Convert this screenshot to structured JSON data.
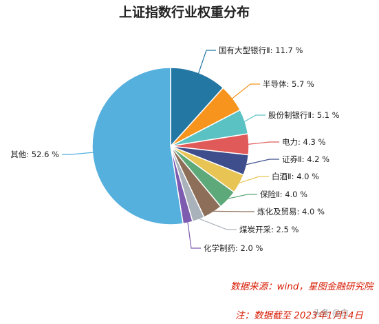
{
  "chart_data": {
    "type": "pie",
    "title": "上证指数行业权重分布",
    "unit": "%",
    "slices": [
      {
        "label": "国有大型银行Ⅱ",
        "value": 11.7,
        "color": "#2377a3"
      },
      {
        "label": "半导体",
        "value": 5.7,
        "color": "#f7941d"
      },
      {
        "label": "股份制银行Ⅱ",
        "value": 5.1,
        "color": "#5bc2c4"
      },
      {
        "label": "电力",
        "value": 4.3,
        "color": "#e15a5a"
      },
      {
        "label": "证券Ⅱ",
        "value": 4.2,
        "color": "#3e4e8c"
      },
      {
        "label": "白酒Ⅱ",
        "value": 4.0,
        "color": "#e8c455"
      },
      {
        "label": "保险Ⅱ",
        "value": 4.0,
        "color": "#5ea97a"
      },
      {
        "label": "炼化及贸易",
        "value": 4.0,
        "color": "#8d6e58"
      },
      {
        "label": "煤炭开采",
        "value": 2.5,
        "color": "#a9b2bb"
      },
      {
        "label": "化学制药",
        "value": 2.0,
        "color": "#7d5cb0"
      },
      {
        "label": "其他",
        "value": 52.6,
        "color": "#55b0de"
      }
    ]
  },
  "notes": {
    "source": "数据来源：wind，星图金融研究院",
    "cutoff": "注：数据截至 2023年1月14日"
  },
  "watermark": "头条 @白"
}
